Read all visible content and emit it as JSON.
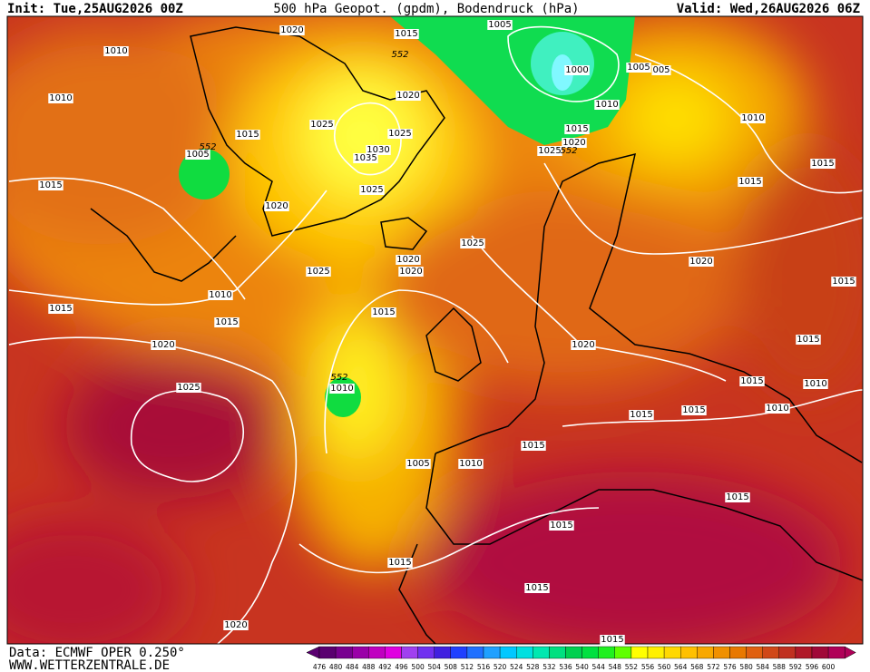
{
  "header": {
    "init": "Init: Tue,25AUG2026 00Z",
    "title": "500 hPa Geopot. (gpdm), Bodendruck (hPa)",
    "valid": "Valid: Wed,26AUG2026 06Z"
  },
  "footer": {
    "data_source": "Data: ECMWF OPER 0.250°",
    "website": "WWW.WETTERZENTRALE.DE"
  },
  "isobar_labels": [
    "1020",
    "1015",
    "1005",
    "1010",
    "552",
    "1000",
    "1005",
    "005",
    "1010",
    "1020",
    "1010",
    "1010",
    "1025",
    "1015",
    "1025",
    "1015",
    "1020",
    "1030",
    "1025",
    "552",
    "1035",
    "1005",
    "552",
    "1015",
    "1015",
    "1025",
    "1015",
    "1020",
    "1025",
    "1020",
    "1020",
    "1025",
    "1020",
    "1010",
    "1015",
    "1015",
    "1015",
    "1015",
    "1020",
    "1020",
    "1015",
    "1015",
    "1010",
    "552",
    "1010",
    "1025",
    "1015",
    "1015",
    "1010",
    "1015",
    "1005",
    "1010",
    "1015",
    "1015",
    "1015",
    "1015",
    "1020",
    "1015"
  ],
  "colorbar": {
    "labels": [
      "476",
      "480",
      "484",
      "488",
      "492",
      "496",
      "500",
      "504",
      "508",
      "512",
      "516",
      "520",
      "524",
      "528",
      "532",
      "536",
      "540",
      "544",
      "548",
      "552",
      "556",
      "560",
      "564",
      "568",
      "572",
      "576",
      "580",
      "584",
      "588",
      "592",
      "596",
      "600"
    ],
    "colors": [
      "#5a0070",
      "#780090",
      "#9a00a8",
      "#c000c0",
      "#e000e0",
      "#a040f0",
      "#7030f0",
      "#4020e0",
      "#2040ff",
      "#2070ff",
      "#20a0ff",
      "#00c8ff",
      "#00e0e0",
      "#00e8b0",
      "#00e080",
      "#00d050",
      "#00e040",
      "#20f020",
      "#60ff00",
      "#ffff00",
      "#fff000",
      "#ffd800",
      "#ffc000",
      "#f8a800",
      "#f09000",
      "#e87800",
      "#e06010",
      "#d04818",
      "#c03020",
      "#b01828",
      "#a00838",
      "#b00058"
    ]
  }
}
